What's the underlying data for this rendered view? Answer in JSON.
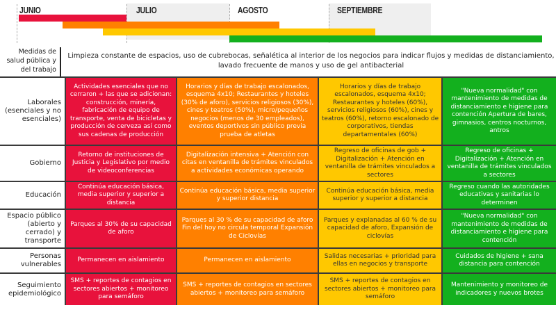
{
  "timeline": {
    "months": [
      "JUNIO",
      "JULIO",
      "AGOSTO",
      "SEPTIEMBRE"
    ],
    "colors": {
      "red": "#e8123c",
      "orange": "#ff8000",
      "yellow": "#ffc800",
      "green": "#13b01e"
    }
  },
  "salud": {
    "label": "Medidas de salud pública y del trabajo",
    "text": "Limpieza constante de espacios, uso de cubrebocas, señalética al interior de los negocios para indicar flujos y medidas de distanciamiento, lavado frecuente de manos y uso de gel antibacterial"
  },
  "rows": [
    {
      "label": "Laborales (esenciales y no esenciales)",
      "cells": [
        "Actividades esenciales que no cerraron + las que se adicionan: construcción, minería, fabricación de equipo de transporte, venta de bicicletas y producción de cerveza así como sus cadenas de producción",
        "Horarios y días de trabajo escalonados, esquema 4x10; Restaurantes y hoteles (30% de aforo), servicios religiosos (30%), cines y teatros (50%), micro/pequeños negocios (menos de 30 empleados), eventos deportivos sin público previa prueba de atletas",
        "Horarios y días de trabajo escalonados, esquema 4x10; Restaurantes y hoteles (60%), servicios religiosos (60%), cines y teatros (60%), retorno escalonado de corporativos, tiendas departamentales (60%)",
        "\"Nueva normalidad\" con mantenimiento de medidas de distanciamiento e higiene para contención Apertura de bares, gimnasios, centros nocturnos, antros"
      ]
    },
    {
      "label": "Gobierno",
      "cells": [
        "Retorno de instituciones de Justicia y Legislativo por medio de videoconferencias",
        "Digitalización intensiva + Atención con citas en ventanilla de trámites vinculados a actividades económicas operando",
        "Regreso de oficinas de gob + Digitalización + Atención en ventanilla de trámites vinculados a sectores",
        "Regreso de oficinas + Digitalización + Atención en ventanilla de trámites vinculados a sectores"
      ]
    },
    {
      "label": "Educación",
      "cells": [
        "Continúa educación básica, media superior y superior a distancia",
        "Continúa educación básica, media superior y superior distancia",
        "Continúa educación básica, media superior y superior a distancia",
        "Regreso cuando las autoridades educativas y sanitarias lo determinen"
      ]
    },
    {
      "label": "Espacio público (abierto y cerrado) y transporte",
      "cells": [
        "Parques al 30% de su capacidad de aforo",
        "Parques al 30 % de su capacidad de aforo Fin del hoy no circula temporal Expansión de Ciclovías",
        "Parques y explanadas al 60 % de su capacidad de aforo, Expansión de ciclovías",
        "\"Nueva normalidad\" con mantenimiento de medidas de distanciamiento e higiene para contención"
      ]
    },
    {
      "label": "Personas vulnerables",
      "cells": [
        "Permanecen en aislamiento",
        "Permanecen en aislamiento",
        "Salidas necesarias + prioridad para ellas en negocios y transporte",
        "Cuidados de higiene + sana distancia para contención"
      ]
    },
    {
      "label": "Seguimiento epidemiológico",
      "cells": [
        "SMS + reportes de contagios en sectores abiertos + monitoreo para semáforo",
        "SMS + reportes de contagios en sectores abiertos + monitoreo para semáforo",
        "SMS + reportes de contagios en sectores abiertos + monitoreo para semáforo",
        "Mantenimiento y monitoreo de indicadores y nuevos brotes"
      ]
    }
  ]
}
